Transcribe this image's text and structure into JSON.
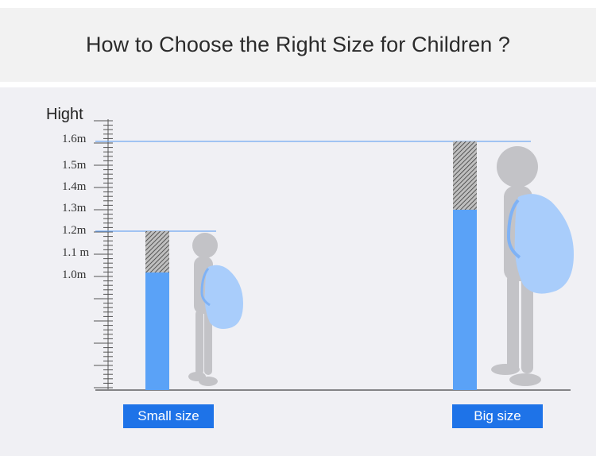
{
  "title": "How to Choose the Right Size for Children ?",
  "scale": {
    "axis_label": "Hight",
    "ticks": [
      "1.6m",
      "1.5m",
      "1.4m",
      "1.3m",
      "1.2m",
      "1.1 m",
      "1.0m"
    ]
  },
  "sizes": {
    "small_label": "Small size",
    "big_label": "Big size"
  },
  "colors": {
    "accent": "#1e73e8",
    "bar": "#5aa2f7",
    "backpack": "#a9cdfb",
    "silhouette": "#c3c3c7"
  }
}
